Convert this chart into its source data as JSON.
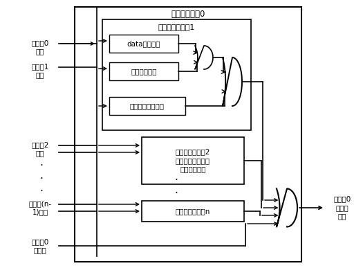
{
  "title": "写使能产生器0",
  "bg_color": "#ffffff",
  "text_color": "#000000",
  "labels": {
    "port0_addr": "写端口0\n地址",
    "port1_addr": "写端口1\n地址",
    "port2_addr": "写端口2\n地址",
    "port_n1_addr": "写端口(n-\n1)地址",
    "port0_we": "写端口0\n写使能",
    "comparator1_title": "写优先级比较器1",
    "comp1_box1": "data比较判别",
    "comp1_box2": "标签比较判别",
    "comp1_box3": "标签空间距离判别",
    "comparator2_title": "写优先级比较器2\n标签与数据其他范\n式距离的判别",
    "comparator_n_title": "写优先级比较器n",
    "output_label": "写端口0\n生成写\n使能",
    "dots_left": "·\n·\n·",
    "dots_mid": "·\n·"
  }
}
